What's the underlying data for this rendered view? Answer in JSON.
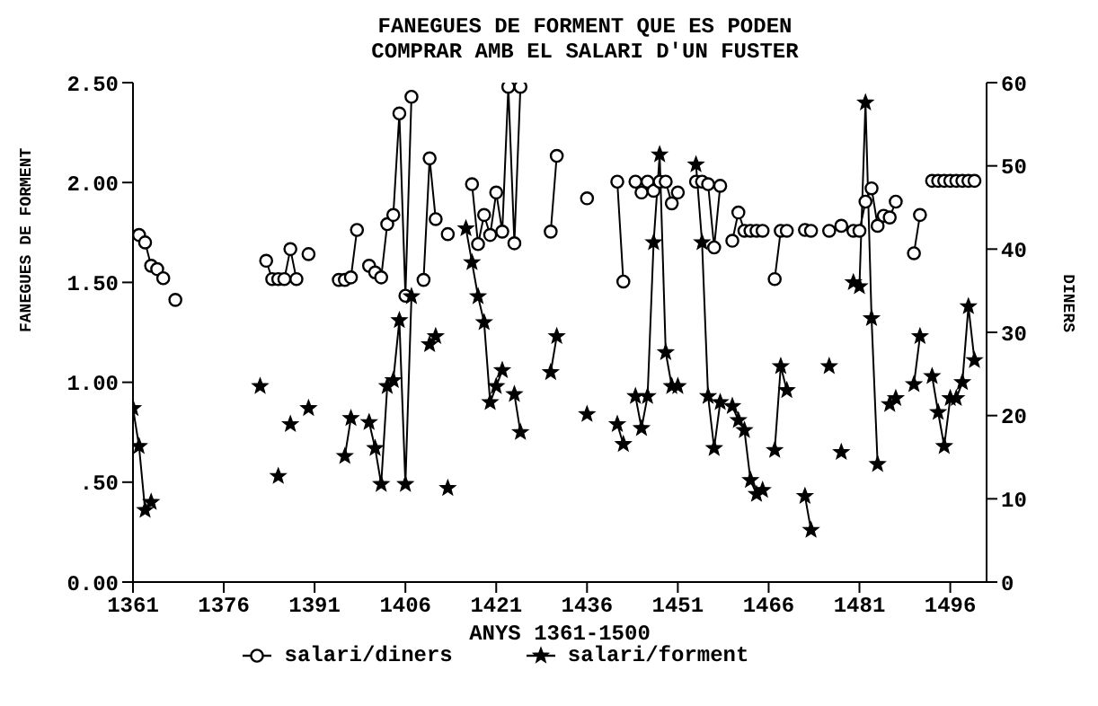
{
  "chart_data": {
    "type": "line",
    "title": "FANEGUES DE FORMENT QUE ES PODEN\nCOMPRAR AMB EL SALARI D'UN FUSTER",
    "xlabel": "ANYS 1361-1500",
    "ylabel": "FANEGUES DE FORMENT",
    "y2label": "DINERS",
    "xlim": [
      1361,
      1502
    ],
    "xticks": [
      1361,
      1376,
      1391,
      1406,
      1421,
      1436,
      1451,
      1466,
      1481,
      1496
    ],
    "ylim": [
      0,
      2.5
    ],
    "yticks": [
      {
        "value": 0,
        "label": "0.00"
      },
      {
        "value": 0.5,
        "label": ".50"
      },
      {
        "value": 1,
        "label": "1.00"
      },
      {
        "value": 1.5,
        "label": "1.50"
      },
      {
        "value": 2,
        "label": "2.00"
      },
      {
        "value": 2.5,
        "label": "2.50"
      }
    ],
    "y2lim": [
      0,
      60
    ],
    "y2ticks": [
      0,
      10,
      20,
      30,
      40,
      50,
      60
    ],
    "grid": false,
    "legend": "bottom",
    "series": [
      {
        "name": "salari/diners",
        "color": "#000000",
        "axis": "y2",
        "marker": "circle",
        "x": [
          1362,
          1363,
          1364,
          1365,
          1366,
          1367,
          1368,
          1370,
          1383,
          1384,
          1385,
          1386,
          1387,
          1388,
          1389,
          1390,
          1392,
          1395,
          1396,
          1397,
          1398,
          1399,
          1400,
          1401,
          1402,
          1403,
          1404,
          1405,
          1406,
          1407,
          1408,
          1409,
          1410,
          1411,
          1412,
          1413,
          1414,
          1417,
          1418,
          1419,
          1420,
          1421,
          1422,
          1423,
          1424,
          1425,
          1426,
          1430,
          1431,
          1432,
          1436,
          1437,
          1441,
          1442,
          1443,
          1444,
          1445,
          1446,
          1447,
          1448,
          1449,
          1450,
          1451,
          1452,
          1454,
          1455,
          1456,
          1457,
          1458,
          1459,
          1460,
          1461,
          1462,
          1463,
          1464,
          1465,
          1466,
          1467,
          1468,
          1469,
          1470,
          1472,
          1472.5,
          1473,
          1474,
          1476,
          1477,
          1478,
          1479,
          1480,
          1481,
          1482,
          1483,
          1484,
          1485,
          1486,
          1487,
          1488,
          1490,
          1491,
          1492,
          1493,
          1494,
          1495,
          1496,
          1497,
          1498,
          1499,
          1500
        ],
        "values": [
          41.7,
          40.8,
          38.0,
          37.6,
          36.5,
          null,
          33.9,
          null,
          38.6,
          36.4,
          36.4,
          36.4,
          40.0,
          36.4,
          null,
          39.4,
          null,
          36.3,
          36.3,
          36.6,
          42.3,
          null,
          38.0,
          37.2,
          36.6,
          43.0,
          44.1,
          56.3,
          34.4,
          58.3,
          null,
          36.3,
          50.9,
          43.6,
          null,
          41.8,
          null,
          47.8,
          40.6,
          44.1,
          41.7,
          46.8,
          42.1,
          59.5,
          40.7,
          59.5,
          null,
          42.1,
          51.2,
          null,
          46.1,
          null,
          48.1,
          36.1,
          null,
          48.1,
          46.8,
          48.1,
          47.0,
          48.1,
          48.1,
          45.5,
          46.8,
          null,
          48.1,
          48.1,
          47.8,
          40.2,
          47.6,
          null,
          41.0,
          44.4,
          42.2,
          42.2,
          42.2,
          42.2,
          null,
          36.4,
          42.2,
          42.2,
          null,
          42.3,
          null,
          42.2,
          null,
          42.2,
          null,
          42.8,
          null,
          42.2,
          42.2,
          45.7,
          47.3,
          42.8,
          44.0,
          43.8,
          45.7,
          null,
          39.5,
          44.1,
          null,
          48.2,
          48.2,
          48.2,
          48.2,
          48.2,
          48.2,
          48.2,
          48.2
        ]
      },
      {
        "name": "salari/forment",
        "color": "#000000",
        "marker": "star",
        "x": [
          1361,
          1362,
          1363,
          1364,
          1365,
          1382,
          1383,
          1385,
          1386,
          1387,
          1388,
          1390,
          1391,
          1396,
          1397,
          1398,
          1400,
          1401,
          1402,
          1403,
          1404,
          1405,
          1406,
          1407,
          1408,
          1410,
          1411,
          1412,
          1413,
          1414,
          1416,
          1417,
          1418,
          1419,
          1420,
          1421,
          1422,
          1423,
          1424,
          1425,
          1426,
          1430,
          1431,
          1432,
          1436,
          1437,
          1441,
          1442,
          1443,
          1444,
          1445,
          1446,
          1447,
          1448,
          1449,
          1450,
          1451,
          1452,
          1454,
          1455,
          1456,
          1457,
          1458,
          1459,
          1460,
          1461,
          1462,
          1463,
          1464,
          1465,
          1466,
          1467,
          1468,
          1469,
          1470,
          1472,
          1473,
          1474,
          1476,
          1477,
          1478,
          1479,
          1480,
          1481,
          1482,
          1483,
          1484,
          1485,
          1486,
          1486.5,
          1487,
          1488,
          1490,
          1491,
          1492,
          1493,
          1494,
          1495,
          1496,
          1497,
          1498,
          1499,
          1500
        ],
        "values": [
          0.87,
          0.68,
          0.36,
          0.4,
          null,
          0.98,
          null,
          0.53,
          null,
          0.79,
          null,
          0.87,
          null,
          0.63,
          0.82,
          null,
          0.8,
          0.67,
          0.49,
          0.98,
          1.01,
          1.31,
          0.49,
          1.43,
          null,
          1.19,
          1.23,
          null,
          0.47,
          null,
          1.77,
          1.6,
          1.43,
          1.3,
          0.9,
          0.98,
          1.06,
          null,
          0.94,
          0.75,
          null,
          1.05,
          1.23,
          null,
          0.84,
          null,
          0.79,
          0.69,
          null,
          0.93,
          0.77,
          0.93,
          1.7,
          2.14,
          1.15,
          0.98,
          0.98,
          null,
          2.09,
          1.7,
          0.93,
          0.67,
          0.9,
          null,
          0.88,
          0.81,
          0.76,
          0.51,
          0.44,
          0.46,
          null,
          0.66,
          1.08,
          0.96,
          null,
          0.43,
          0.26,
          null,
          1.08,
          null,
          0.65,
          null,
          1.5,
          1.48,
          2.4,
          1.32,
          0.59,
          null,
          0.89,
          null,
          0.92,
          null,
          0.99,
          1.23,
          null,
          1.03,
          0.85,
          0.68,
          0.92,
          0.92,
          1.0,
          1.38,
          1.11
        ]
      }
    ]
  }
}
